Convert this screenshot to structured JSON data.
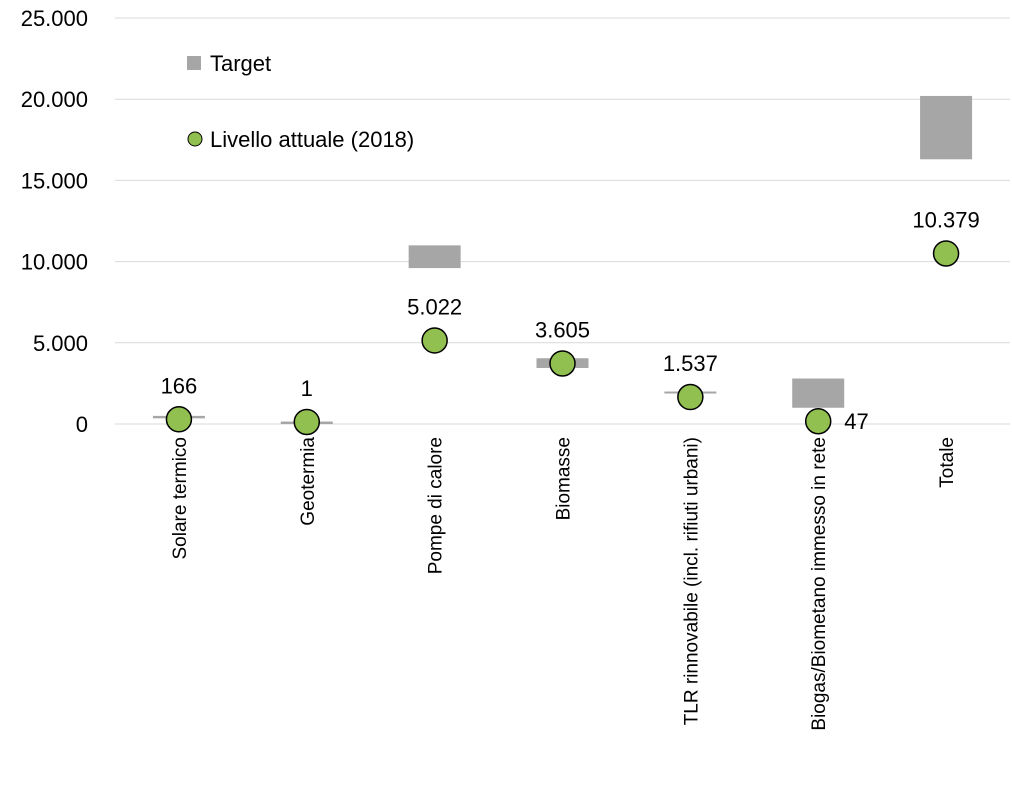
{
  "chart_data": {
    "type": "scatter",
    "title": "",
    "xlabel": "",
    "ylabel": "",
    "ylim": [
      0,
      25000
    ],
    "yticks": [
      0,
      5000,
      10000,
      15000,
      20000,
      25000
    ],
    "ytick_labels": [
      "0",
      "5.000",
      "10.000",
      "15.000",
      "20.000",
      "25.000"
    ],
    "grid": "horizontal",
    "legend_position": "top-left",
    "categories": [
      "Solare termico",
      "Geotermia",
      "Pompe di calore",
      "Biomasse",
      "TLR rinnovabile (incl. rifiuti urbani)",
      "Biogas/Biometano immesso in rete",
      "Totale"
    ],
    "series": [
      {
        "name": "Target",
        "kind": "range",
        "color": "#a6a6a6",
        "ranges": [
          [
            350,
            500
          ],
          [
            0,
            150
          ],
          [
            9600,
            11000
          ],
          [
            3450,
            4050
          ],
          [
            1900,
            2000
          ],
          [
            1000,
            2800
          ],
          [
            16300,
            20200
          ]
        ]
      },
      {
        "name": "Livello attuale (2018)",
        "kind": "marker",
        "color": "#92c050",
        "edge_color": "#000000",
        "values": [
          166,
          1,
          5022,
          3605,
          1537,
          47,
          10379
        ],
        "labels": [
          "166",
          "1",
          "5.022",
          "3.605",
          "1.537",
          "47",
          "10.379"
        ]
      }
    ]
  }
}
